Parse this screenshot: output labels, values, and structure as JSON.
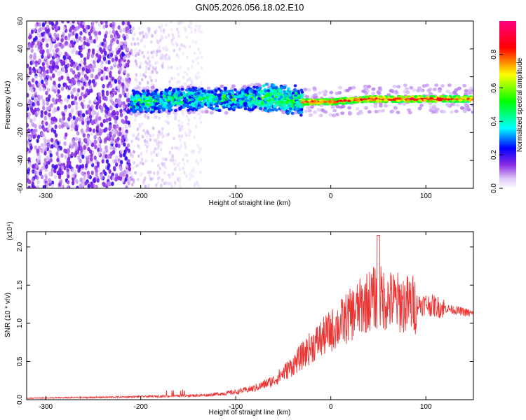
{
  "title": "GN05.2026.056.18.02.E10",
  "chart_data": [
    {
      "type": "heatmap",
      "panel": "spectrogram",
      "xlabel": "Height of straight line (km)",
      "ylabel": "Frequency (Hz)",
      "xlim": [
        -320,
        150
      ],
      "ylim": [
        -60,
        60
      ],
      "xticks": [
        -300,
        -200,
        -100,
        0,
        100
      ],
      "yticks": [
        -60,
        -40,
        -20,
        0,
        20,
        40,
        60
      ],
      "colorbar": {
        "label": "Normalized spectral amplitude",
        "range": [
          0,
          1
        ],
        "ticks": [
          "0.0",
          "0.2",
          "0.4",
          "0.6",
          "0.8"
        ],
        "colors": [
          "#ffffff",
          "#dcc4f8",
          "#8a2be2",
          "#0000ff",
          "#00ffff",
          "#00ff00",
          "#ffff00",
          "#ff0000",
          "#ff0080"
        ]
      },
      "regions": [
        {
          "name": "broadband noise",
          "x": [
            -320,
            -210
          ],
          "freq": [
            -60,
            60
          ],
          "amplitude": 0.25
        },
        {
          "name": "fading noise",
          "x": [
            -210,
            -135
          ],
          "freq": [
            -60,
            60
          ],
          "amplitude": 0.1
        },
        {
          "name": "signal band",
          "x": [
            -210,
            -30
          ],
          "freq": [
            -8,
            10
          ],
          "amplitude": 0.45
        },
        {
          "name": "signal line",
          "x": [
            -30,
            150
          ],
          "freq": [
            1,
            6
          ],
          "amplitude": 0.8
        }
      ],
      "ridge_center_hz": [
        {
          "x": -210,
          "f": 2
        },
        {
          "x": -150,
          "f": 4
        },
        {
          "x": -100,
          "f": 4
        },
        {
          "x": -60,
          "f": 5
        },
        {
          "x": -30,
          "f": 2
        },
        {
          "x": 0,
          "f": 2
        },
        {
          "x": 40,
          "f": 4
        },
        {
          "x": 100,
          "f": 4
        },
        {
          "x": 150,
          "f": 4
        }
      ]
    },
    {
      "type": "line",
      "panel": "snr",
      "xlabel": "Height of straight line (km)",
      "ylabel": "SNR (10 * v/v)",
      "multiplier": "(x10⁴)",
      "xlim": [
        -320,
        150
      ],
      "ylim": [
        0,
        2.2
      ],
      "xticks": [
        -300,
        -200,
        -100,
        0,
        100
      ],
      "yticks": [
        "0.0",
        "0.5",
        "1.0",
        "1.5",
        "2.0"
      ],
      "series_color": "#ee3333",
      "series": [
        {
          "x": [
            -320,
            -250,
            -200,
            -160,
            -130,
            -100,
            -80,
            -60,
            -40,
            -20,
            0,
            20,
            40,
            50,
            60,
            80,
            100,
            120,
            140,
            150
          ],
          "y": [
            0.02,
            0.03,
            0.04,
            0.05,
            0.06,
            0.1,
            0.15,
            0.25,
            0.45,
            0.7,
            0.9,
            1.1,
            1.3,
            1.35,
            1.3,
            1.25,
            1.25,
            1.2,
            1.15,
            1.12
          ]
        }
      ],
      "peak": {
        "x": 50,
        "y": 2.15
      }
    }
  ]
}
